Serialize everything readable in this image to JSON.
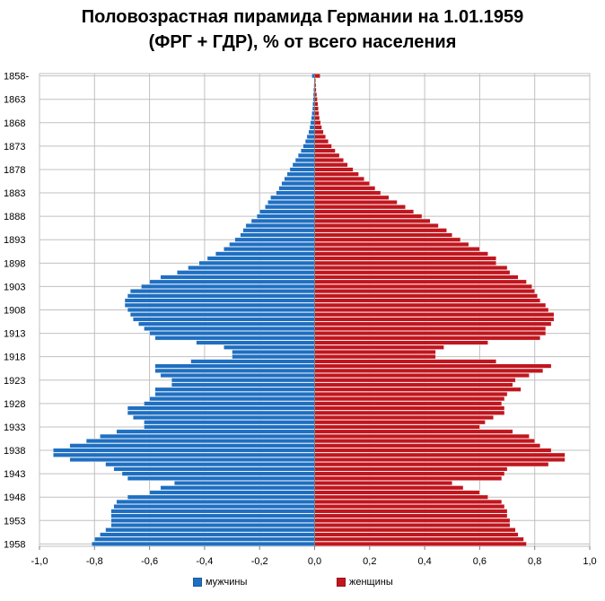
{
  "chart_data": {
    "type": "bar",
    "orientation": "horizontal-pyramid",
    "title": "Половозрастная пирамида Германии на 1.01.1959",
    "subtitle": "(ФРГ + ГДР), % от всего населения",
    "ylim_years": [
      1858,
      1958
    ],
    "xlim": [
      -1.0,
      1.0
    ],
    "x_ticks": [
      "-1,0",
      "-0,8",
      "-0,6",
      "-0,4",
      "-0,2",
      "0,0",
      "0,2",
      "0,4",
      "0,6",
      "0,8",
      "1,0"
    ],
    "y_tick_labels": [
      "1858-",
      "1863",
      "1868",
      "1873",
      "1878",
      "1883",
      "1888",
      "1893",
      "1898",
      "1903",
      "1908",
      "1913",
      "1918",
      "1923",
      "1928",
      "1933",
      "1938",
      "1943",
      "1948",
      "1953",
      "1958"
    ],
    "legend": {
      "position": "bottom",
      "items": [
        {
          "name": "мужчины",
          "color": "#1f6fc1"
        },
        {
          "name": "женщины",
          "color": "#c0161e"
        }
      ]
    },
    "grid": true,
    "colors": {
      "men": "#1f6fc1",
      "women": "#c0161e",
      "bar_edge": "#ffffff",
      "grid": "#c0c0c0"
    },
    "years": [
      1858,
      1859,
      1860,
      1861,
      1862,
      1863,
      1864,
      1865,
      1866,
      1867,
      1868,
      1869,
      1870,
      1871,
      1872,
      1873,
      1874,
      1875,
      1876,
      1877,
      1878,
      1879,
      1880,
      1881,
      1882,
      1883,
      1884,
      1885,
      1886,
      1887,
      1888,
      1889,
      1890,
      1891,
      1892,
      1893,
      1894,
      1895,
      1896,
      1897,
      1898,
      1899,
      1900,
      1901,
      1902,
      1903,
      1904,
      1905,
      1906,
      1907,
      1908,
      1909,
      1910,
      1911,
      1912,
      1913,
      1914,
      1915,
      1916,
      1917,
      1918,
      1919,
      1920,
      1921,
      1922,
      1923,
      1924,
      1925,
      1926,
      1927,
      1928,
      1929,
      1930,
      1931,
      1932,
      1933,
      1934,
      1935,
      1936,
      1937,
      1938,
      1939,
      1940,
      1941,
      1942,
      1943,
      1944,
      1945,
      1946,
      1947,
      1948,
      1949,
      1950,
      1951,
      1952,
      1953,
      1954,
      1955,
      1956,
      1957,
      1958
    ],
    "series": [
      {
        "name": "мужчины",
        "values": [
          -0.01,
          -0.002,
          -0.003,
          -0.004,
          -0.005,
          -0.006,
          -0.007,
          -0.008,
          -0.01,
          -0.012,
          -0.015,
          -0.018,
          -0.022,
          -0.028,
          -0.034,
          -0.042,
          -0.05,
          -0.06,
          -0.07,
          -0.08,
          -0.09,
          -0.1,
          -0.11,
          -0.12,
          -0.13,
          -0.14,
          -0.16,
          -0.17,
          -0.18,
          -0.2,
          -0.21,
          -0.23,
          -0.25,
          -0.26,
          -0.27,
          -0.29,
          -0.31,
          -0.33,
          -0.36,
          -0.39,
          -0.42,
          -0.46,
          -0.5,
          -0.56,
          -0.6,
          -0.63,
          -0.67,
          -0.68,
          -0.69,
          -0.69,
          -0.68,
          -0.67,
          -0.66,
          -0.64,
          -0.62,
          -0.6,
          -0.58,
          -0.43,
          -0.33,
          -0.3,
          -0.3,
          -0.45,
          -0.58,
          -0.58,
          -0.56,
          -0.52,
          -0.52,
          -0.58,
          -0.58,
          -0.6,
          -0.62,
          -0.68,
          -0.68,
          -0.66,
          -0.62,
          -0.62,
          -0.72,
          -0.78,
          -0.83,
          -0.89,
          -0.95,
          -0.95,
          -0.89,
          -0.76,
          -0.73,
          -0.7,
          -0.68,
          -0.51,
          -0.56,
          -0.6,
          -0.68,
          -0.72,
          -0.73,
          -0.74,
          -0.74,
          -0.74,
          -0.74,
          -0.76,
          -0.78,
          -0.8,
          -0.81
        ]
      },
      {
        "name": "женщины",
        "values": [
          0.02,
          0.004,
          0.005,
          0.006,
          0.008,
          0.01,
          0.012,
          0.014,
          0.016,
          0.018,
          0.022,
          0.026,
          0.032,
          0.04,
          0.05,
          0.062,
          0.075,
          0.09,
          0.105,
          0.12,
          0.14,
          0.16,
          0.18,
          0.2,
          0.22,
          0.24,
          0.27,
          0.3,
          0.33,
          0.36,
          0.39,
          0.42,
          0.45,
          0.48,
          0.5,
          0.53,
          0.56,
          0.6,
          0.63,
          0.66,
          0.66,
          0.7,
          0.71,
          0.74,
          0.77,
          0.79,
          0.8,
          0.81,
          0.82,
          0.84,
          0.85,
          0.87,
          0.87,
          0.86,
          0.84,
          0.84,
          0.82,
          0.63,
          0.47,
          0.44,
          0.44,
          0.66,
          0.86,
          0.83,
          0.78,
          0.73,
          0.72,
          0.75,
          0.7,
          0.69,
          0.68,
          0.69,
          0.69,
          0.65,
          0.62,
          0.6,
          0.72,
          0.78,
          0.8,
          0.82,
          0.86,
          0.91,
          0.91,
          0.85,
          0.7,
          0.69,
          0.68,
          0.5,
          0.54,
          0.6,
          0.63,
          0.68,
          0.69,
          0.7,
          0.7,
          0.71,
          0.71,
          0.73,
          0.74,
          0.76,
          0.77
        ]
      }
    ]
  }
}
